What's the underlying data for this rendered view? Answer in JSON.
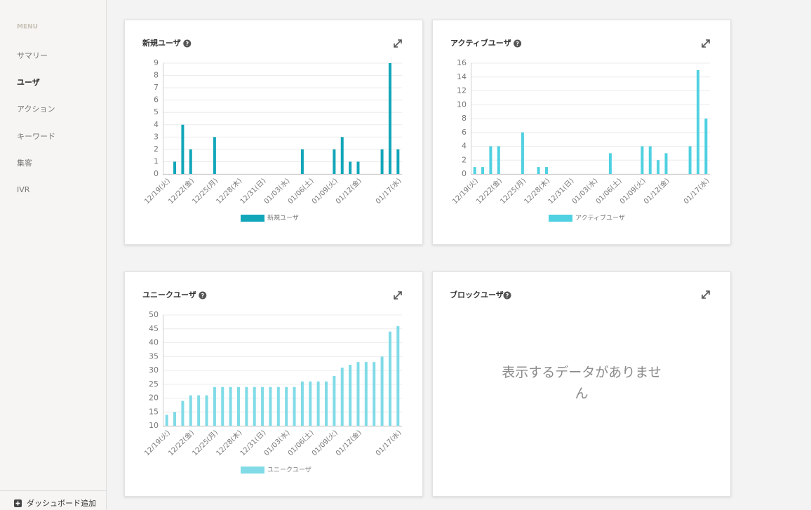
{
  "menu": {
    "heading": "MENU",
    "items": [
      "サマリー",
      "ユーザ",
      "アクション",
      "キーワード",
      "集客",
      "IVR"
    ],
    "add_dashboard": "ダッシュボード追加"
  },
  "chart_data": [
    {
      "type": "bar",
      "title": "新規ユーザ",
      "categories": [
        "12/19(火)",
        null,
        null,
        "12/22(金)",
        null,
        null,
        "12/25(月)",
        null,
        null,
        "12/28(木)",
        null,
        null,
        "12/31(日)",
        null,
        null,
        "01/03(水)",
        null,
        null,
        "01/06(土)",
        null,
        null,
        "01/09(火)",
        null,
        null,
        "01/12(金)",
        null,
        null,
        null,
        null,
        "01/17(水)"
      ],
      "series": [
        {
          "name": "新規ユーザ",
          "color": "#12a6b9",
          "values": [
            0,
            1,
            4,
            2,
            0,
            0,
            3,
            0,
            0,
            0,
            0,
            0,
            0,
            0,
            0,
            0,
            0,
            2,
            0,
            0,
            0,
            2,
            3,
            1,
            1,
            0,
            0,
            2,
            9,
            2
          ]
        }
      ],
      "ylim": [
        0,
        9
      ],
      "yticks": [
        0,
        1,
        2,
        3,
        4,
        5,
        6,
        7,
        8,
        9
      ],
      "grid": true
    },
    {
      "type": "bar",
      "title": "アクティブユーザ",
      "categories": [
        "12/19(火)",
        null,
        null,
        "12/22(金)",
        null,
        null,
        "12/25(月)",
        null,
        null,
        "12/28(木)",
        null,
        null,
        "12/31(日)",
        null,
        null,
        "01/03(水)",
        null,
        null,
        "01/06(土)",
        null,
        null,
        "01/09(火)",
        null,
        null,
        "01/12(金)",
        null,
        null,
        null,
        null,
        "01/17(水)"
      ],
      "series": [
        {
          "name": "アクティブユーザ",
          "color": "#4fd1e1",
          "values": [
            1,
            1,
            4,
            4,
            0,
            0,
            6,
            0,
            1,
            1,
            0,
            0,
            0,
            0,
            0,
            0,
            0,
            3,
            0,
            0,
            0,
            4,
            4,
            2,
            3,
            0,
            0,
            4,
            15,
            8
          ]
        }
      ],
      "ylim": [
        0,
        16
      ],
      "yticks": [
        0,
        2,
        4,
        6,
        8,
        10,
        12,
        14,
        16
      ],
      "grid": true
    },
    {
      "type": "bar",
      "title": "ユニークユーザ",
      "categories": [
        "12/19(火)",
        null,
        null,
        "12/22(金)",
        null,
        null,
        "12/25(月)",
        null,
        null,
        "12/28(木)",
        null,
        null,
        "12/31(日)",
        null,
        null,
        "01/03(水)",
        null,
        null,
        "01/06(土)",
        null,
        null,
        "01/09(火)",
        null,
        null,
        "01/12(金)",
        null,
        null,
        null,
        null,
        "01/17(水)"
      ],
      "series": [
        {
          "name": "ユニークユーザ",
          "color": "#80dbe7",
          "values": [
            14,
            15,
            19,
            21,
            21,
            21,
            24,
            24,
            24,
            24,
            24,
            24,
            24,
            24,
            24,
            24,
            24,
            26,
            26,
            26,
            26,
            28,
            31,
            32,
            33,
            33,
            33,
            35,
            44,
            46
          ]
        }
      ],
      "ylim": [
        10,
        50
      ],
      "yticks": [
        10,
        15,
        20,
        25,
        30,
        35,
        40,
        45,
        50
      ],
      "grid": true
    }
  ],
  "block_panel": {
    "title": "ブロックユーザ",
    "message": "表示するデータがありません"
  }
}
